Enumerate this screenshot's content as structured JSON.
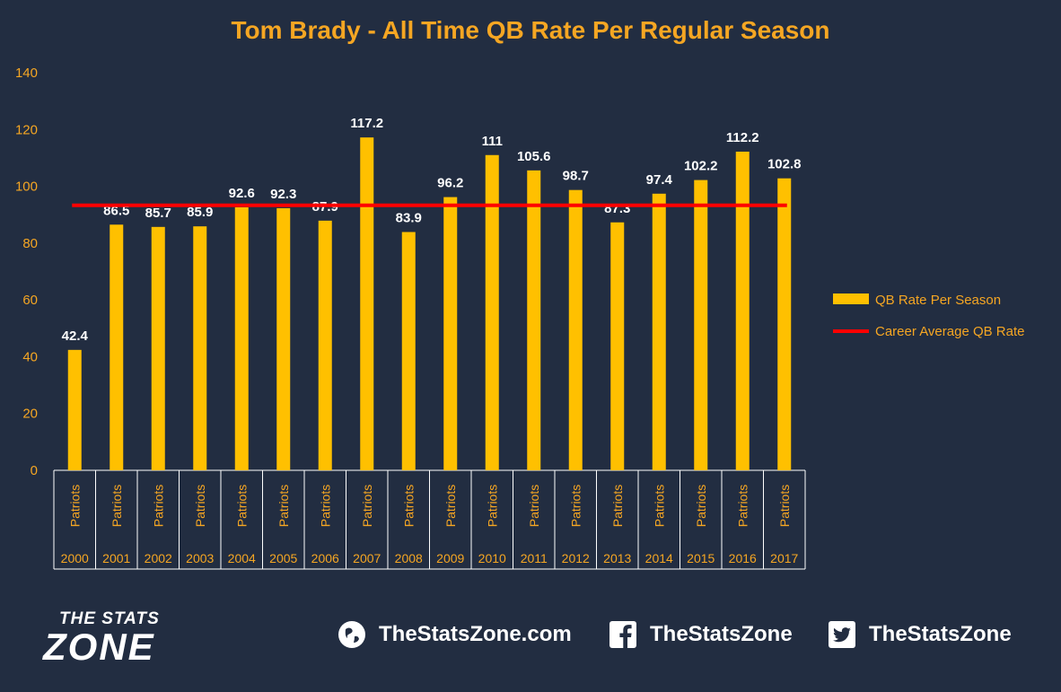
{
  "chart_data": {
    "type": "bar",
    "title": "Tom Brady - All Time QB Rate Per Regular Season",
    "categories": [
      "2000",
      "2001",
      "2002",
      "2003",
      "2004",
      "2005",
      "2006",
      "2007",
      "2008",
      "2009",
      "2010",
      "2011",
      "2012",
      "2013",
      "2014",
      "2015",
      "2016",
      "2017"
    ],
    "team_labels": [
      "Patriots",
      "Patriots",
      "Patriots",
      "Patriots",
      "Patriots",
      "Patriots",
      "Patriots",
      "Patriots",
      "Patriots",
      "Patriots",
      "Patriots",
      "Patriots",
      "Patriots",
      "Patriots",
      "Patriots",
      "Patriots",
      "Patriots",
      "Patriots"
    ],
    "series": [
      {
        "name": "QB Rate Per Season",
        "type": "bar",
        "color": "#ffc000",
        "values": [
          42.4,
          86.5,
          85.7,
          85.9,
          92.6,
          92.3,
          87.9,
          117.2,
          83.9,
          96.2,
          111,
          105.6,
          98.7,
          87.3,
          97.4,
          102.2,
          112.2,
          102.8
        ]
      },
      {
        "name": "Career Average QB Rate",
        "type": "line",
        "color": "#ff0000",
        "value": 93.3
      }
    ],
    "ylim": [
      0,
      140
    ],
    "yticks": [
      0,
      20,
      40,
      60,
      80,
      100,
      120,
      140
    ],
    "grid": false,
    "legend": "right"
  },
  "footer": {
    "logo_top": "THE STATS",
    "logo_main": "ZONE",
    "website": "TheStatsZone.com",
    "facebook": "TheStatsZone",
    "twitter": "TheStatsZone",
    "website_icon": "globe-icon",
    "facebook_icon": "facebook-icon",
    "twitter_icon": "twitter-icon"
  }
}
